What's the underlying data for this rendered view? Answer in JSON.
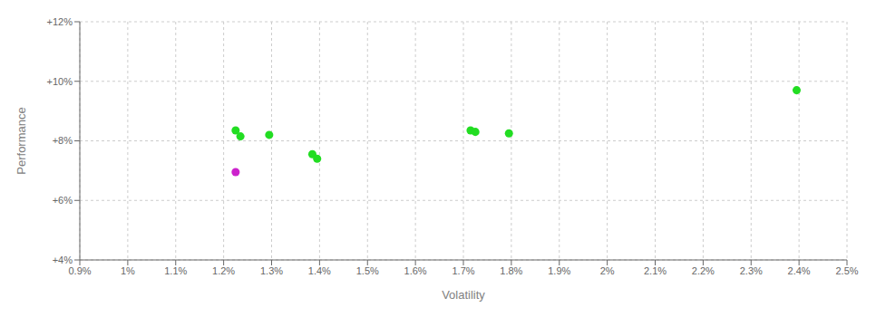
{
  "chart_data": {
    "type": "scatter",
    "xlabel": "Volatility",
    "ylabel": "Performance",
    "xlim": [
      0.009,
      0.025
    ],
    "ylim": [
      0.04,
      0.12
    ],
    "xticks": [
      {
        "value": 0.009,
        "label": "0.9%"
      },
      {
        "value": 0.01,
        "label": "1%"
      },
      {
        "value": 0.011,
        "label": "1.1%"
      },
      {
        "value": 0.012,
        "label": "1.2%"
      },
      {
        "value": 0.013,
        "label": "1.3%"
      },
      {
        "value": 0.014,
        "label": "1.4%"
      },
      {
        "value": 0.015,
        "label": "1.5%"
      },
      {
        "value": 0.016,
        "label": "1.6%"
      },
      {
        "value": 0.017,
        "label": "1.7%"
      },
      {
        "value": 0.018,
        "label": "1.8%"
      },
      {
        "value": 0.019,
        "label": "1.9%"
      },
      {
        "value": 0.02,
        "label": "2%"
      },
      {
        "value": 0.021,
        "label": "2.1%"
      },
      {
        "value": 0.022,
        "label": "2.2%"
      },
      {
        "value": 0.023,
        "label": "2.3%"
      },
      {
        "value": 0.024,
        "label": "2.4%"
      },
      {
        "value": 0.025,
        "label": "2.5%"
      }
    ],
    "yticks": [
      {
        "value": 0.04,
        "label": "+4%"
      },
      {
        "value": 0.06,
        "label": "+6%"
      },
      {
        "value": 0.08,
        "label": "+8%"
      },
      {
        "value": 0.1,
        "label": "+10%"
      },
      {
        "value": 0.12,
        "label": "+12%"
      }
    ],
    "grid": true,
    "series": [
      {
        "color": "#22dd22",
        "x": [
          0.01225,
          0.01235,
          0.01295,
          0.01385,
          0.01395,
          0.01715,
          0.01725,
          0.01795,
          0.02395
        ],
        "values": [
          0.0835,
          0.0815,
          0.082,
          0.0755,
          0.074,
          0.0835,
          0.083,
          0.0825,
          0.097
        ]
      },
      {
        "color": "#cc22cc",
        "x": [
          0.01225
        ],
        "values": [
          0.0695
        ]
      }
    ]
  }
}
